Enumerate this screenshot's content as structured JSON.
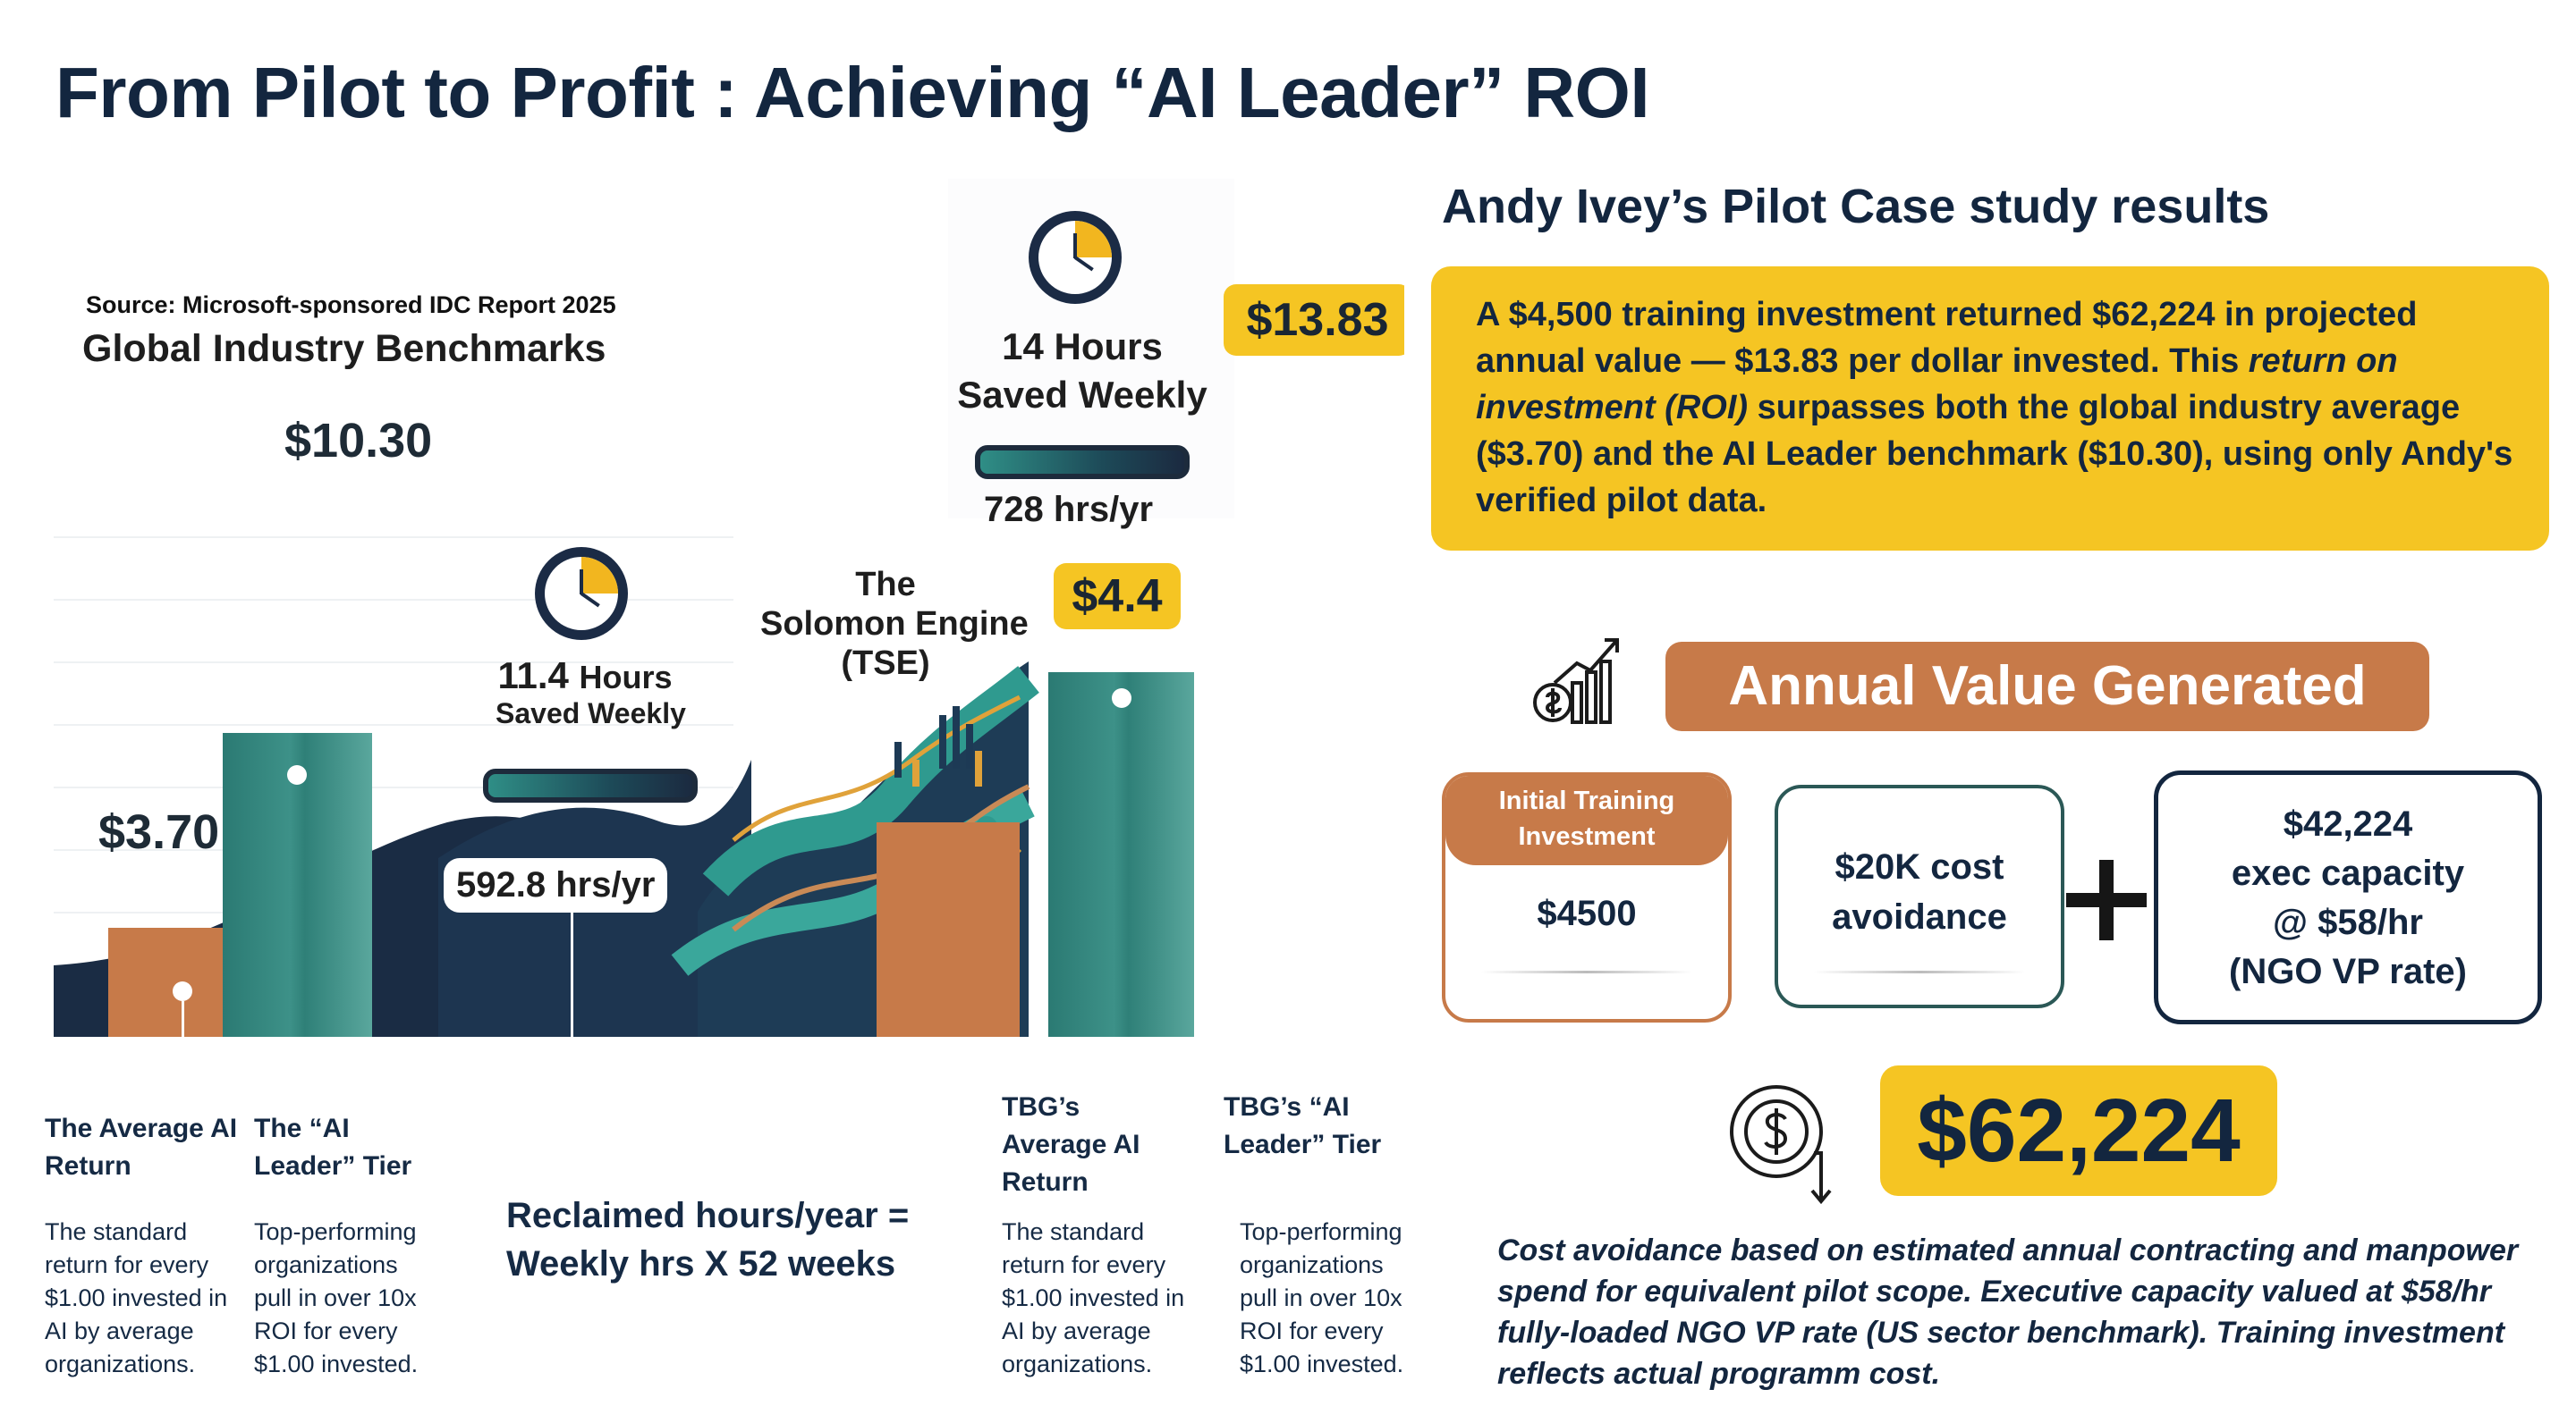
{
  "title": "From Pilot to Profit : Achieving “AI Leader” ROI",
  "chart": {
    "source": "Source: Microsoft-sponsored IDC Report 2025",
    "heading": "Global Industry Benchmarks",
    "avg_value": "$3.70",
    "leader_value": "$10.30",
    "left_hours_value": "11.4",
    "left_hours_unit": "Hours",
    "left_hours_sub": "Saved Weekly",
    "left_hrs_yr": "592.8 hrs/yr",
    "engine_label_1": "The",
    "engine_label_2": "Solomon Engine",
    "engine_label_3": "(TSE)",
    "right_hours_1": "14 Hours",
    "right_hours_2": "Saved Weekly",
    "right_hrs_yr": "728 hrs/yr",
    "tbg_avg_value": "$4.4",
    "tbg_leader_value": "$13.83"
  },
  "chart_data": {
    "type": "bar",
    "categories": [
      "The Average AI Return",
      "The “AI Leader” Tier",
      "TBG’s Average AI Return",
      "TBG’s “AI Leader” Tier"
    ],
    "values": [
      3.7,
      10.3,
      4.4,
      13.83
    ],
    "colors": [
      "#c77a49",
      "#2f8078",
      "#c77a49",
      "#2f8078"
    ]
  },
  "columns": [
    {
      "heading": "The Average AI Return",
      "body": "The standard return for every $1.00 invested in AI by average organizations."
    },
    {
      "heading": "The “AI Leader” Tier",
      "body": "Top-performing organizations pull in over 10x ROI for every $1.00 invested."
    },
    {
      "heading": "TBG’s Average AI Return",
      "body": "The standard return for every $1.00 invested in AI by average organizations."
    },
    {
      "heading": "TBG’s “AI Leader” Tier",
      "body": "Top-performing organizations pull in over 10x ROI for every $1.00 invested."
    }
  ],
  "formula_1": "Reclaimed hours/year =",
  "formula_2": "Weekly hrs X 52 weeks",
  "case": {
    "title": "Andy Ivey’s Pilot Case study results",
    "summary_a": "A $4,500 training investment returned $62,224 in projected annual value — $13.83 per dollar invested. This ",
    "summary_em": "return on investment (ROI)",
    "summary_b": " surpasses both the global industry average ($3.70) and the AI Leader benchmark ($10.30), using only Andy's verified pilot data."
  },
  "annual_value_title": "Annual Value Generated",
  "boxes": {
    "itb_head": "Initial Training Investment",
    "itb_value": "$4500",
    "cost_value": "$20K cost avoidance",
    "exec_line1": "$42,224",
    "exec_line2": "exec capacity",
    "exec_line3": "@ $58/hr",
    "exec_line4": "(NGO VP rate)"
  },
  "total": "$62,224",
  "footnote": "Cost avoidance based on estimated annual contracting and manpower spend for equivalent pilot scope. Executive capacity valued at $58/hr fully-loaded NGO VP rate (US sector benchmark). Training investment reflects actual programm cost.",
  "icons": [
    "clock-icon",
    "money-growth-icon",
    "dollar-coin-icon",
    "plus-icon"
  ],
  "colors": {
    "navy": "#13263f",
    "yellow": "#f5c523",
    "orange": "#c77a49",
    "teal": "#2f8078"
  }
}
